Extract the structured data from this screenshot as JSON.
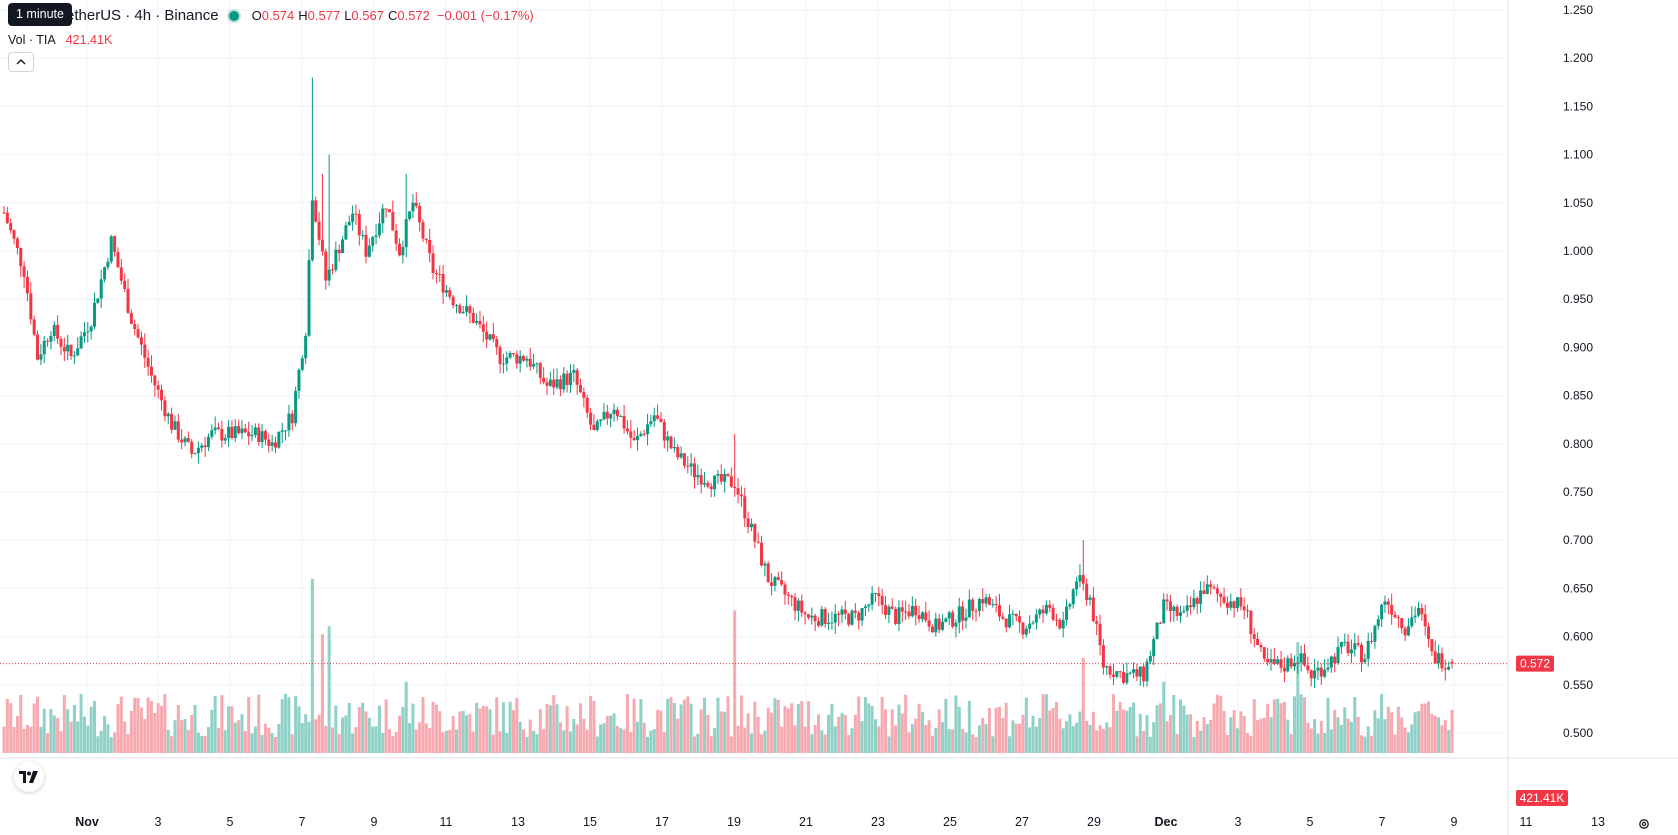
{
  "legend": {
    "symbol": "etherUS · 4h · Binance",
    "open_label": "O",
    "open": "0.574",
    "high_label": "H",
    "high": "0.577",
    "low_label": "L",
    "low": "0.567",
    "close_label": "C",
    "close": "0.572",
    "change": "−0.001 (−0.17%)"
  },
  "volume_legend": {
    "label": "Vol · TIA",
    "value": "421.41K"
  },
  "tooltip": "1 minute",
  "icons": {
    "collapse": "chevron-up-icon",
    "logo": "tradingview-logo-icon",
    "settings": "gear-icon"
  },
  "colors": {
    "up": "#089981",
    "down": "#f23645",
    "up_volume": "#8fd1c6",
    "down_volume": "#f7a9b0",
    "grid": "#f0f3fa",
    "text": "#131722"
  },
  "chart_data": {
    "type": "candlestick",
    "interval": "4h",
    "ylim": [
      0.475,
      1.26
    ],
    "y_ticks": [
      "1.250",
      "1.200",
      "1.150",
      "1.100",
      "1.050",
      "1.000",
      "0.950",
      "0.900",
      "0.850",
      "0.800",
      "0.750",
      "0.700",
      "0.650",
      "0.600",
      "0.550",
      "0.500"
    ],
    "x_ticks": [
      "Nov",
      "3",
      "5",
      "7",
      "9",
      "11",
      "13",
      "15",
      "17",
      "19",
      "21",
      "23",
      "25",
      "27",
      "29",
      "Dec",
      "3",
      "5",
      "7",
      "9",
      "11",
      "13"
    ],
    "last_price_label": "0.572",
    "last_volume_label": "421.41K",
    "price_path": [
      [
        0,
        1.04
      ],
      [
        6,
        0.98
      ],
      [
        10,
        0.89
      ],
      [
        14,
        0.92
      ],
      [
        20,
        0.89
      ],
      [
        26,
        0.93
      ],
      [
        32,
        1.01
      ],
      [
        38,
        0.93
      ],
      [
        44,
        0.87
      ],
      [
        50,
        0.82
      ],
      [
        56,
        0.79
      ],
      [
        62,
        0.81
      ],
      [
        70,
        0.81
      ],
      [
        76,
        0.81
      ],
      [
        80,
        0.8
      ],
      [
        86,
        0.83
      ],
      [
        90,
        0.92
      ],
      [
        92,
        1.06
      ],
      [
        96,
        0.97
      ],
      [
        104,
        1.04
      ],
      [
        108,
        1.0
      ],
      [
        114,
        1.05
      ],
      [
        118,
        1.0
      ],
      [
        122,
        1.05
      ],
      [
        128,
        0.98
      ],
      [
        134,
        0.95
      ],
      [
        140,
        0.93
      ],
      [
        148,
        0.89
      ],
      [
        156,
        0.89
      ],
      [
        162,
        0.86
      ],
      [
        170,
        0.87
      ],
      [
        176,
        0.81
      ],
      [
        182,
        0.84
      ],
      [
        188,
        0.8
      ],
      [
        194,
        0.83
      ],
      [
        200,
        0.79
      ],
      [
        206,
        0.77
      ],
      [
        212,
        0.76
      ],
      [
        218,
        0.76
      ],
      [
        222,
        0.72
      ],
      [
        228,
        0.66
      ],
      [
        234,
        0.64
      ],
      [
        240,
        0.62
      ],
      [
        246,
        0.62
      ],
      [
        254,
        0.62
      ],
      [
        260,
        0.64
      ],
      [
        266,
        0.62
      ],
      [
        272,
        0.63
      ],
      [
        278,
        0.61
      ],
      [
        284,
        0.62
      ],
      [
        292,
        0.64
      ],
      [
        298,
        0.62
      ],
      [
        304,
        0.61
      ],
      [
        308,
        0.62
      ],
      [
        312,
        0.63
      ],
      [
        316,
        0.61
      ],
      [
        320,
        0.66
      ],
      [
        324,
        0.64
      ],
      [
        328,
        0.57
      ],
      [
        334,
        0.56
      ],
      [
        340,
        0.56
      ],
      [
        346,
        0.63
      ],
      [
        352,
        0.62
      ],
      [
        358,
        0.65
      ],
      [
        364,
        0.64
      ],
      [
        370,
        0.63
      ],
      [
        376,
        0.57
      ],
      [
        382,
        0.57
      ],
      [
        386,
        0.58
      ],
      [
        390,
        0.56
      ],
      [
        394,
        0.57
      ],
      [
        400,
        0.59
      ],
      [
        406,
        0.58
      ],
      [
        412,
        0.64
      ],
      [
        418,
        0.61
      ],
      [
        422,
        0.63
      ],
      [
        426,
        0.58
      ],
      [
        432,
        0.572
      ]
    ],
    "volume_range": [
      0,
      2400000.0
    ]
  }
}
